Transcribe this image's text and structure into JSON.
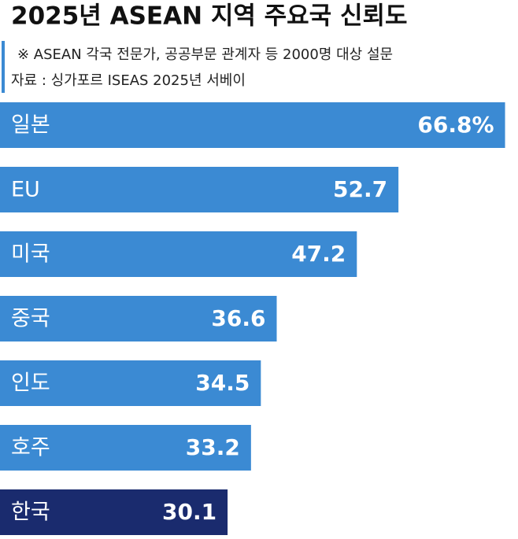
{
  "chart_data": {
    "type": "bar",
    "orientation": "horizontal",
    "title": "2025년 ASEAN 지역 주요국 신뢰도",
    "subtitle": "※  ASEAN 각국 전문가, 공공부문 관계자 등 2000명 대상 설문",
    "source": "자료 : 싱가포르 ISEAS 2025년 서베이",
    "categories": [
      "일본",
      "EU",
      "미국",
      "중국",
      "인도",
      "호주",
      "한국"
    ],
    "values": [
      66.8,
      52.7,
      47.2,
      36.6,
      34.5,
      33.2,
      30.1
    ],
    "value_labels": [
      "66.8%",
      "52.7",
      "47.2",
      "36.6",
      "34.5",
      "33.2",
      "30.1"
    ],
    "colors": [
      "#3b8ad3",
      "#3b8ad3",
      "#3b8ad3",
      "#3b8ad3",
      "#3b8ad3",
      "#3b8ad3",
      "#1a2b6e"
    ]
  }
}
